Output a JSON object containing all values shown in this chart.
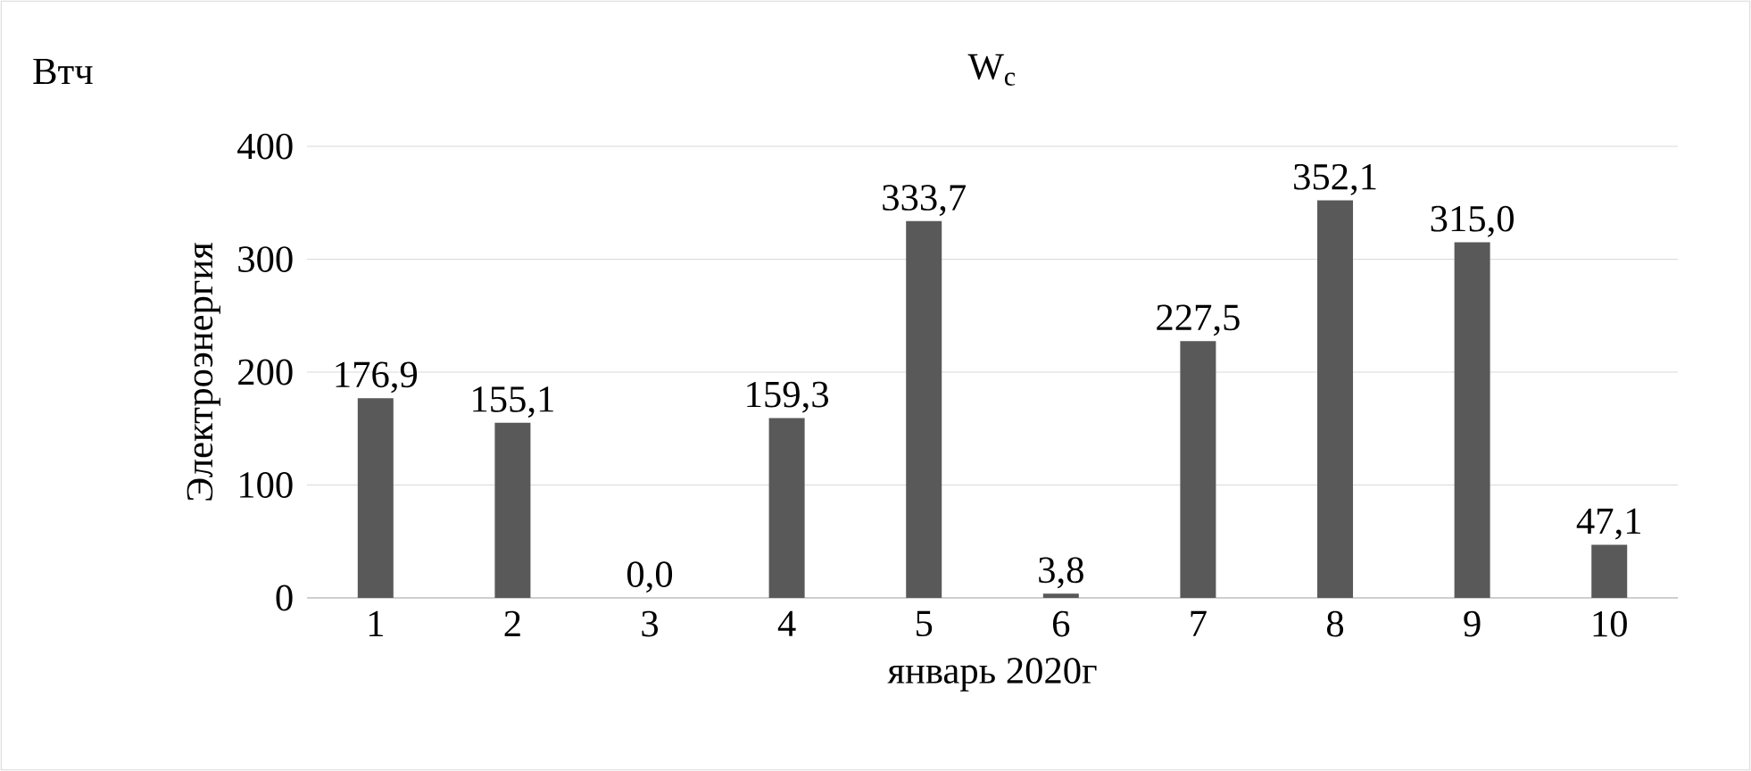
{
  "chart_data": {
    "type": "bar",
    "title": "W$_{c}$",
    "xlabel": "январь 2020г",
    "ylabel": "Электроэнергия",
    "annotations": [
      "Втч"
    ],
    "categories": [
      "1",
      "2",
      "3",
      "4",
      "5",
      "6",
      "7",
      "8",
      "9",
      "10"
    ],
    "values": [
      176.9,
      155.1,
      0.0,
      159.3,
      333.7,
      3.8,
      227.5,
      352.1,
      315.0,
      47.1
    ],
    "value_labels": [
      "176,9",
      "155,1",
      "0,0",
      "159,3",
      "333,7",
      "3,8",
      "227,5",
      "352,1",
      "315,0",
      "47,1"
    ],
    "color": "#595959",
    "ylim": [
      0,
      400
    ],
    "yticks": [
      0,
      100,
      200,
      300,
      400
    ],
    "grid": "y"
  }
}
